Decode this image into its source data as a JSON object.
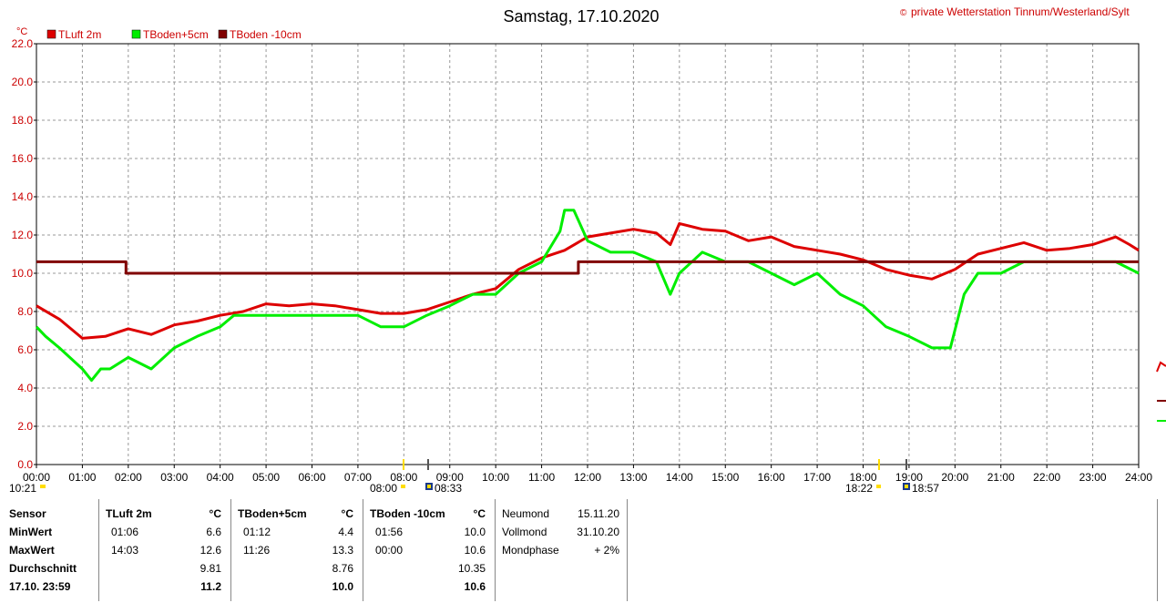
{
  "chart_data": {
    "type": "line",
    "title": "Samstag, 17.10.2020",
    "copyright": "private Wetterstation Tinnum/Westerland/Sylt",
    "copyright_symbol": "©",
    "ylabel": "°C",
    "ylim": [
      0,
      22
    ],
    "yticks": [
      "0.0",
      "2.0",
      "4.0",
      "6.0",
      "8.0",
      "10.0",
      "12.0",
      "14.0",
      "16.0",
      "18.0",
      "20.0",
      "22.0"
    ],
    "xlim": [
      0,
      24
    ],
    "xticks": [
      "00:00",
      "01:00",
      "02:00",
      "03:00",
      "04:00",
      "05:00",
      "06:00",
      "07:00",
      "08:00",
      "09:00",
      "10:00",
      "11:00",
      "12:00",
      "13:00",
      "14:00",
      "15:00",
      "16:00",
      "17:00",
      "18:00",
      "19:00",
      "20:00",
      "21:00",
      "22:00",
      "23:00",
      "24:00"
    ],
    "grid": true,
    "legend_position": "top-left",
    "series": [
      {
        "name": "TLuft 2m",
        "color": "#dd0000",
        "x": [
          0,
          0.5,
          1.0,
          1.5,
          2.0,
          2.5,
          3.0,
          3.5,
          4.0,
          4.5,
          5.0,
          5.5,
          6.0,
          6.5,
          7.0,
          7.5,
          8.0,
          8.5,
          9.0,
          9.5,
          10.0,
          10.5,
          11.0,
          11.5,
          12.0,
          12.5,
          13.0,
          13.5,
          13.8,
          14.0,
          14.5,
          15.0,
          15.5,
          16.0,
          16.5,
          17.0,
          17.5,
          18.0,
          18.5,
          19.0,
          19.5,
          20.0,
          20.5,
          21.0,
          21.5,
          22.0,
          22.5,
          23.0,
          23.5,
          23.8,
          24.0
        ],
        "y": [
          8.3,
          7.6,
          6.6,
          6.7,
          7.1,
          6.8,
          7.3,
          7.5,
          7.8,
          8.0,
          8.4,
          8.3,
          8.4,
          8.3,
          8.1,
          7.9,
          7.9,
          8.1,
          8.5,
          8.9,
          9.2,
          10.2,
          10.8,
          11.2,
          11.9,
          12.1,
          12.3,
          12.1,
          11.5,
          12.6,
          12.3,
          12.2,
          11.7,
          11.9,
          11.4,
          11.2,
          11.0,
          10.7,
          10.2,
          9.9,
          9.7,
          10.2,
          11.0,
          11.3,
          11.6,
          11.2,
          11.3,
          11.5,
          11.9,
          11.5,
          11.2
        ]
      },
      {
        "name": "TBoden+5cm",
        "color": "#00ee00",
        "x": [
          0,
          0.2,
          0.5,
          1.0,
          1.2,
          1.4,
          1.6,
          2.0,
          2.5,
          3.0,
          3.5,
          4.0,
          4.3,
          5.0,
          6.0,
          7.0,
          7.5,
          8.0,
          8.5,
          9.0,
          9.5,
          10.0,
          10.5,
          11.0,
          11.4,
          11.5,
          11.7,
          12.0,
          12.5,
          13.0,
          13.5,
          13.8,
          14.0,
          14.5,
          15.0,
          15.5,
          16.0,
          16.5,
          17.0,
          17.5,
          18.0,
          18.5,
          19.0,
          19.5,
          19.9,
          20.2,
          20.5,
          21.0,
          21.5,
          22.0,
          22.5,
          23.0,
          23.5,
          24.0
        ],
        "y": [
          7.2,
          6.7,
          6.1,
          5.0,
          4.4,
          5.0,
          5.0,
          5.6,
          5.0,
          6.1,
          6.7,
          7.2,
          7.8,
          7.8,
          7.8,
          7.8,
          7.2,
          7.2,
          7.8,
          8.3,
          8.9,
          8.9,
          10.0,
          10.6,
          12.2,
          13.3,
          13.3,
          11.7,
          11.1,
          11.1,
          10.6,
          8.9,
          10.0,
          11.1,
          10.6,
          10.6,
          10.0,
          9.4,
          10.0,
          8.9,
          8.3,
          7.2,
          6.7,
          6.1,
          6.1,
          8.9,
          10.0,
          10.0,
          10.6,
          10.6,
          10.6,
          10.6,
          10.6,
          10.0
        ]
      },
      {
        "name": "TBoden -10cm",
        "color": "#800000",
        "x": [
          0,
          1.95,
          1.95,
          11.8,
          11.8,
          24
        ],
        "y": [
          10.6,
          10.6,
          10.0,
          10.0,
          10.6,
          10.6
        ]
      }
    ],
    "sun_markers": {
      "sunrise_left": "10:21",
      "sunrise": "08:00",
      "sunset": "08:33",
      "sunrise2": "18:22",
      "sunset2": "18:57"
    }
  },
  "stats": {
    "sensor_header": "Sensor",
    "row_labels": [
      "MinWert",
      "MaxWert",
      "Durchschnitt",
      "17.10. 23:59"
    ],
    "unit": "°C",
    "columns": [
      {
        "header": "TLuft 2m",
        "min_time": "01:06",
        "min_value": "6.6",
        "max_time": "14:03",
        "max_value": "12.6",
        "avg": "9.81",
        "current": "11.2"
      },
      {
        "header": "TBoden+5cm",
        "min_time": "01:12",
        "min_value": "4.4",
        "max_time": "11:26",
        "max_value": "13.3",
        "avg": "8.76",
        "current": "10.0"
      },
      {
        "header": "TBoden -10cm",
        "min_time": "01:56",
        "min_value": "10.0",
        "max_time": "00:00",
        "max_value": "10.6",
        "avg": "10.35",
        "current": "10.6"
      }
    ],
    "moon": [
      {
        "label": "Neumond",
        "value": "15.11.20"
      },
      {
        "label": "Vollmond",
        "value": "31.10.20"
      },
      {
        "label": "Mondphase",
        "value": "+ 2%"
      }
    ]
  }
}
